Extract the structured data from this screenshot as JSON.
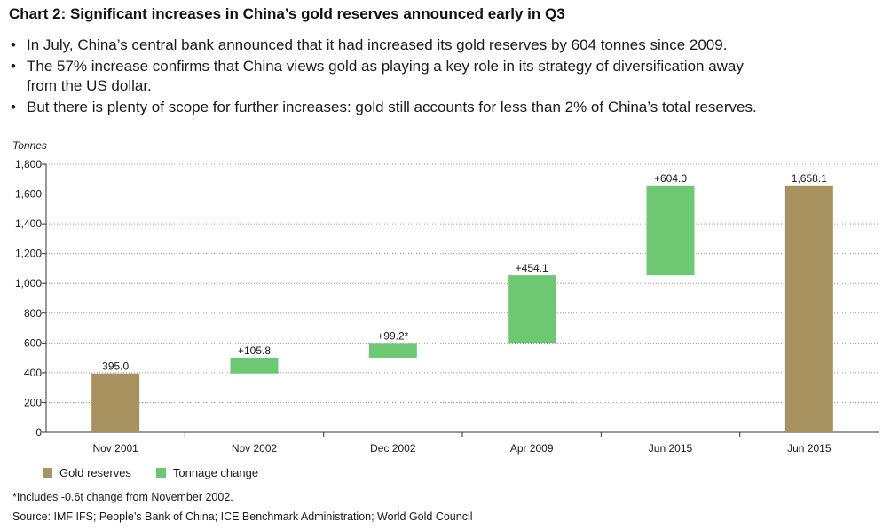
{
  "header": {
    "title": "Chart 2: Significant increases in China’s gold reserves announced early in Q3"
  },
  "bullets": [
    "In July, China’s central bank announced that it had increased its gold reserves by 604 tonnes since 2009.",
    "The 57% increase confirms that China views gold as playing a key role in its strategy of diversification away from the US dollar.",
    "But there is plenty of scope for further increases: gold still accounts for less than 2% of China’s total reserves."
  ],
  "bullet_glyph": "•",
  "chart_data": {
    "type": "bar",
    "subtype": "waterfall",
    "ylabel": "Tonnes",
    "ylim": [
      0,
      1800
    ],
    "yticks": [
      0,
      200,
      400,
      600,
      800,
      1000,
      1200,
      1400,
      1600,
      1800
    ],
    "ytick_labels": [
      "0",
      "200",
      "400",
      "600",
      "800",
      "1,000",
      "1,200",
      "1,400",
      "1,600",
      "1,800"
    ],
    "grid": true,
    "legend_position": "bottom-left",
    "categories": [
      "Nov 2001",
      "Nov 2002",
      "Dec 2002",
      "Apr 2009",
      "Jun 2015",
      "Jun 2015"
    ],
    "bars": [
      {
        "kind": "Gold reserves",
        "start": 0,
        "end": 395.0,
        "label": "395.0"
      },
      {
        "kind": "Tonnage change",
        "start": 395.0,
        "end": 500.8,
        "label": "+105.8"
      },
      {
        "kind": "Tonnage change",
        "start": 500.8,
        "end": 600.0,
        "label": "+99.2*"
      },
      {
        "kind": "Tonnage change",
        "start": 600.0,
        "end": 1054.1,
        "label": "+454.1"
      },
      {
        "kind": "Tonnage change",
        "start": 1054.1,
        "end": 1658.1,
        "label": "+604.0"
      },
      {
        "kind": "Gold reserves",
        "start": 0,
        "end": 1658.1,
        "label": "1,658.1"
      }
    ],
    "legend": [
      {
        "name": "Gold reserves",
        "color": "#a8925f"
      },
      {
        "name": "Tonnage change",
        "color": "#6dc773"
      }
    ]
  },
  "footnote": "*Includes -0.6t change from November 2002.",
  "source": "Source: IMF IFS; People’s Bank of China; ICE Benchmark Administration; World Gold Council",
  "colors": {
    "gold": "#a8925f",
    "change": "#6dc773",
    "axis": "#333333",
    "grid": "#9a9a9a"
  }
}
